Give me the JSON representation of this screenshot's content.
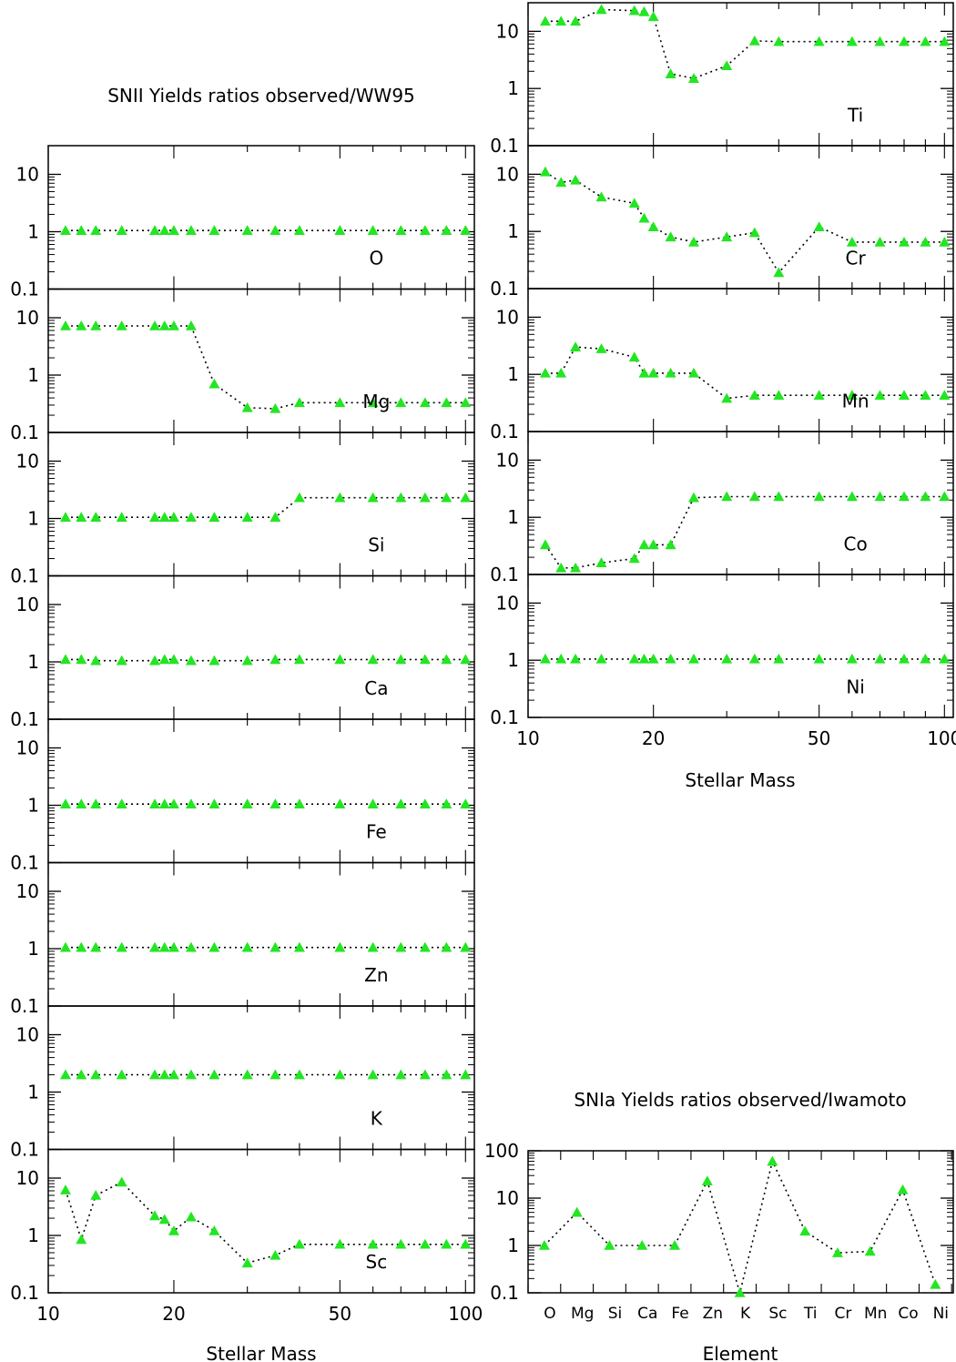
{
  "chart_data": [
    {
      "group": "snii",
      "type": "scatter",
      "title": "SNII Yields ratios observed/WW95",
      "xlabel": "Stellar Mass",
      "x_scale": "log",
      "xlim": [
        10,
        105
      ],
      "x_ticks": [
        "10",
        "20",
        "50",
        "100"
      ],
      "y_scale": "log",
      "y_ticks": [
        "0.1",
        "1",
        "10"
      ],
      "x": [
        11,
        12,
        13,
        15,
        18,
        19,
        20,
        22,
        25,
        30,
        35,
        40,
        50,
        60,
        70,
        80,
        90,
        100
      ],
      "panels": [
        {
          "element": "O",
          "values": [
            1.05,
            1.05,
            1.05,
            1.05,
            1.05,
            1.05,
            1.05,
            1.05,
            1.05,
            1.05,
            1.05,
            1.05,
            1.05,
            1.05,
            1.05,
            1.05,
            1.05,
            1.05
          ]
        },
        {
          "element": "Mg",
          "values": [
            7.2,
            7.2,
            7.2,
            7.2,
            7.2,
            7.2,
            7.2,
            7.2,
            0.7,
            0.27,
            0.26,
            0.33,
            0.33,
            0.33,
            0.33,
            0.33,
            0.33,
            0.33
          ]
        },
        {
          "element": "Si",
          "values": [
            1.05,
            1.05,
            1.05,
            1.05,
            1.05,
            1.05,
            1.05,
            1.05,
            1.05,
            1.05,
            1.05,
            2.3,
            2.3,
            2.3,
            2.3,
            2.3,
            2.3,
            2.3
          ]
        },
        {
          "element": "Ca",
          "values": [
            1.1,
            1.1,
            1.05,
            1.05,
            1.05,
            1.1,
            1.1,
            1.05,
            1.05,
            1.05,
            1.1,
            1.1,
            1.1,
            1.1,
            1.1,
            1.1,
            1.1,
            1.1
          ]
        },
        {
          "element": "Fe",
          "values": [
            1.05,
            1.05,
            1.05,
            1.05,
            1.05,
            1.05,
            1.05,
            1.05,
            1.05,
            1.05,
            1.05,
            1.05,
            1.05,
            1.05,
            1.05,
            1.05,
            1.05,
            1.05
          ]
        },
        {
          "element": "Zn",
          "values": [
            1.05,
            1.05,
            1.05,
            1.05,
            1.05,
            1.05,
            1.05,
            1.05,
            1.05,
            1.05,
            1.05,
            1.05,
            1.05,
            1.05,
            1.05,
            1.05,
            1.05,
            1.05
          ]
        },
        {
          "element": "K",
          "values": [
            2.0,
            2.0,
            2.0,
            2.0,
            2.0,
            2.0,
            2.0,
            2.0,
            2.0,
            2.0,
            2.0,
            2.0,
            2.0,
            2.0,
            2.0,
            2.0,
            2.0,
            2.0
          ]
        },
        {
          "element": "Sc",
          "values": [
            6.2,
            0.85,
            5.0,
            8.5,
            2.2,
            1.9,
            1.2,
            2.1,
            1.2,
            0.33,
            0.45,
            0.7,
            0.7,
            0.7,
            0.7,
            0.7,
            0.7,
            0.7
          ]
        }
      ]
    },
    {
      "group": "snii-right",
      "type": "scatter",
      "xlabel": "Stellar Mass",
      "x_scale": "log",
      "xlim": [
        10,
        105
      ],
      "x_ticks": [
        "10",
        "20",
        "50",
        "100"
      ],
      "y_scale": "log",
      "y_ticks": [
        "0.1",
        "1",
        "10"
      ],
      "x": [
        11,
        12,
        13,
        15,
        18,
        19,
        20,
        22,
        25,
        30,
        35,
        40,
        50,
        60,
        70,
        80,
        90,
        100
      ],
      "panels": [
        {
          "element": "Ti",
          "values": [
            15,
            15,
            15,
            24,
            23,
            22,
            18,
            1.8,
            1.5,
            2.5,
            6.8,
            6.6,
            6.6,
            6.6,
            6.6,
            6.6,
            6.6,
            6.6
          ]
        },
        {
          "element": "Cr",
          "values": [
            11,
            7.2,
            7.9,
            4.0,
            3.1,
            1.7,
            1.2,
            0.8,
            0.65,
            0.8,
            0.95,
            0.19,
            1.2,
            0.65,
            0.65,
            0.65,
            0.65,
            0.65
          ]
        },
        {
          "element": "Mn",
          "values": [
            1.05,
            1.05,
            3.0,
            2.8,
            2.0,
            1.05,
            1.05,
            1.05,
            1.05,
            0.38,
            0.43,
            0.43,
            0.43,
            0.43,
            0.43,
            0.43,
            0.43,
            0.43
          ]
        },
        {
          "element": "Co",
          "values": [
            0.33,
            0.13,
            0.13,
            0.16,
            0.19,
            0.33,
            0.33,
            0.33,
            2.2,
            2.3,
            2.3,
            2.3,
            2.3,
            2.3,
            2.3,
            2.3,
            2.3,
            2.3
          ]
        },
        {
          "element": "Ni",
          "values": [
            1.05,
            1.05,
            1.05,
            1.05,
            1.05,
            1.05,
            1.05,
            1.05,
            1.05,
            1.05,
            1.05,
            1.05,
            1.05,
            1.05,
            1.05,
            1.05,
            1.05,
            1.05
          ]
        }
      ]
    },
    {
      "group": "snia",
      "type": "scatter",
      "title": "SNIa Yields ratios observed/Iwamoto",
      "xlabel": "Element",
      "y_scale": "log",
      "y_ticks": [
        "0.1",
        "1",
        "10",
        "100"
      ],
      "categories": [
        "O",
        "Mg",
        "Si",
        "Ca",
        "Fe",
        "Zn",
        "K",
        "Sc",
        "Ti",
        "Cr",
        "Mn",
        "Co",
        "Ni"
      ],
      "values": [
        1.0,
        5.0,
        1.0,
        1.0,
        1.0,
        23,
        0.1,
        60,
        2.0,
        0.7,
        0.75,
        15,
        0.15
      ]
    }
  ],
  "colors": {
    "marker": "#22e622",
    "line": "#000000",
    "axis": "#000000"
  }
}
